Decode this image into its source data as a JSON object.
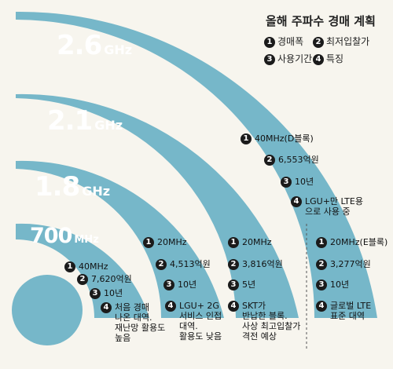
{
  "legend": {
    "title": "올해 주파수 경매 계획",
    "items": [
      {
        "num": "1",
        "label": "경매폭"
      },
      {
        "num": "2",
        "label": "최저입찰가"
      },
      {
        "num": "3",
        "label": "사용기간"
      },
      {
        "num": "4",
        "label": "특징"
      }
    ]
  },
  "bands": {
    "b26": {
      "freq": "2.6",
      "unit": "GHz"
    },
    "b21": {
      "freq": "2.1",
      "unit": "GHz"
    },
    "b18": {
      "freq": "1.8",
      "unit": "GHz"
    },
    "b700": {
      "freq": "700",
      "unit": "MHz"
    }
  },
  "columns": {
    "c700": {
      "width": "40MHz",
      "price": "7,620억원",
      "period": "10년",
      "feature": [
        "처음 경매",
        "나온 대역.",
        "재난망 활용도",
        "높음"
      ]
    },
    "c18": {
      "width": "20MHz",
      "price": "4,513억원",
      "period": "10년",
      "feature": [
        "LGU+ 2G",
        "서비스 인접",
        "대역.",
        "활용도 낮음"
      ]
    },
    "c21": {
      "width": "40MHz(D블록)",
      "price": "6,553억원",
      "period": "10년",
      "feature": [
        "LGU+만 LTE용",
        "으로 사용 중"
      ]
    },
    "c26a": {
      "width": "20MHz",
      "price": "3,816억원",
      "period": "5년",
      "feature": [
        "SKT가",
        "반납한 블록.",
        "사상 최고입찰가",
        "격전 예상"
      ]
    },
    "c26b": {
      "width": "20MHz(E블록)",
      "price": "3,277억원",
      "period": "10년",
      "feature": [
        "글로벌 LTE",
        "표준 대역"
      ]
    }
  },
  "colors": {
    "band": "#76b7c9",
    "background": "#f7f5ee",
    "badge": "#1b1b1b"
  }
}
